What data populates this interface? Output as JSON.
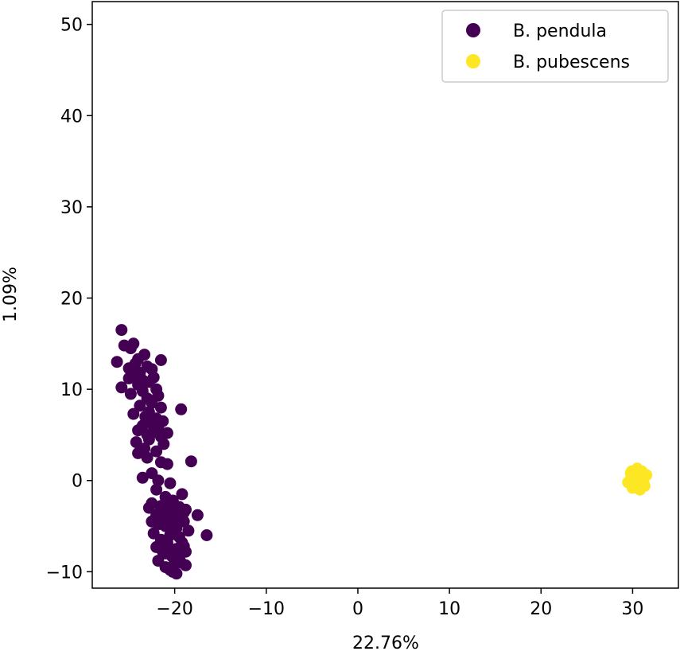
{
  "chart_data": {
    "type": "scatter",
    "title": "",
    "xlabel": "22.76%",
    "ylabel": "1.09%",
    "xlim": [
      -29,
      35
    ],
    "ylim": [
      -11.8,
      52.5
    ],
    "xticks": [
      -20,
      -10,
      0,
      10,
      20,
      30
    ],
    "yticks": [
      -10,
      0,
      10,
      20,
      30,
      40,
      50
    ],
    "xtick_labels": [
      "−20",
      "−10",
      "0",
      "10",
      "20",
      "30"
    ],
    "ytick_labels": [
      "−10",
      "0",
      "10",
      "20",
      "30",
      "40",
      "50"
    ],
    "grid": false,
    "legend_position": "top-right",
    "series": [
      {
        "name": "B. pendula",
        "color": "#440154",
        "points": [
          [
            -25.8,
            16.5
          ],
          [
            -24.5,
            15.0
          ],
          [
            -25.5,
            14.8
          ],
          [
            -24.8,
            14.5
          ],
          [
            -23.3,
            13.8
          ],
          [
            -24.0,
            13.3
          ],
          [
            -21.5,
            13.2
          ],
          [
            -26.3,
            13.0
          ],
          [
            -24.3,
            12.8
          ],
          [
            -23.0,
            12.5
          ],
          [
            -25.0,
            12.3
          ],
          [
            -22.5,
            12.2
          ],
          [
            -23.8,
            11.8
          ],
          [
            -24.5,
            11.5
          ],
          [
            -22.3,
            11.3
          ],
          [
            -23.5,
            11.0
          ],
          [
            -25.0,
            11.2
          ],
          [
            -22.8,
            10.8
          ],
          [
            -24.0,
            10.5
          ],
          [
            -25.8,
            10.2
          ],
          [
            -22.0,
            10.0
          ],
          [
            -23.5,
            9.8
          ],
          [
            -24.8,
            9.5
          ],
          [
            -21.8,
            9.3
          ],
          [
            -23.0,
            9.0
          ],
          [
            -22.5,
            8.5
          ],
          [
            -23.8,
            8.2
          ],
          [
            -21.5,
            8.0
          ],
          [
            -19.3,
            7.8
          ],
          [
            -22.8,
            7.5
          ],
          [
            -24.5,
            7.3
          ],
          [
            -23.2,
            7.0
          ],
          [
            -22.0,
            6.8
          ],
          [
            -21.3,
            6.5
          ],
          [
            -22.5,
            6.2
          ],
          [
            -23.5,
            6.0
          ],
          [
            -21.8,
            5.8
          ],
          [
            -24.0,
            5.5
          ],
          [
            -22.3,
            5.3
          ],
          [
            -20.8,
            5.2
          ],
          [
            -23.0,
            5.0
          ],
          [
            -21.5,
            4.8
          ],
          [
            -22.8,
            4.5
          ],
          [
            -24.2,
            4.2
          ],
          [
            -21.2,
            4.0
          ],
          [
            -23.3,
            3.5
          ],
          [
            -22.0,
            3.2
          ],
          [
            -24.0,
            3.0
          ],
          [
            -23.0,
            2.5
          ],
          [
            -21.5,
            2.0
          ],
          [
            -18.2,
            2.1
          ],
          [
            -20.8,
            1.8
          ],
          [
            -22.5,
            0.8
          ],
          [
            -23.5,
            0.3
          ],
          [
            -21.8,
            0.0
          ],
          [
            -20.5,
            -0.3
          ],
          [
            -19.2,
            -1.5
          ],
          [
            -22.0,
            -1.0
          ],
          [
            -21.0,
            -1.8
          ],
          [
            -20.2,
            -2.2
          ],
          [
            -22.5,
            -2.5
          ],
          [
            -21.5,
            -2.8
          ],
          [
            -19.5,
            -2.9
          ],
          [
            -18.8,
            -3.2
          ],
          [
            -20.8,
            -3.5
          ],
          [
            -22.0,
            -3.8
          ],
          [
            -17.5,
            -3.8
          ],
          [
            -21.2,
            -4.0
          ],
          [
            -20.0,
            -4.2
          ],
          [
            -19.0,
            -4.5
          ],
          [
            -22.5,
            -4.5
          ],
          [
            -21.0,
            -5.0
          ],
          [
            -19.8,
            -5.2
          ],
          [
            -18.5,
            -5.5
          ],
          [
            -22.3,
            -5.8
          ],
          [
            -20.5,
            -6.0
          ],
          [
            -16.5,
            -6.0
          ],
          [
            -21.5,
            -6.5
          ],
          [
            -19.2,
            -6.8
          ],
          [
            -20.8,
            -7.0
          ],
          [
            -22.0,
            -7.3
          ],
          [
            -19.8,
            -7.5
          ],
          [
            -18.8,
            -7.8
          ],
          [
            -21.0,
            -8.0
          ],
          [
            -20.3,
            -8.3
          ],
          [
            -19.5,
            -8.5
          ],
          [
            -21.8,
            -8.8
          ],
          [
            -20.0,
            -9.0
          ],
          [
            -18.8,
            -9.3
          ],
          [
            -21.0,
            -9.5
          ],
          [
            -20.5,
            -9.8
          ],
          [
            -19.8,
            -10.2
          ],
          [
            -20.2,
            -10.0
          ],
          [
            -21.5,
            -3.2
          ],
          [
            -20.5,
            -3.0
          ],
          [
            -19.0,
            -3.5
          ],
          [
            -21.8,
            -4.8
          ],
          [
            -20.2,
            -5.5
          ],
          [
            -19.5,
            -6.2
          ],
          [
            -20.8,
            -6.8
          ],
          [
            -19.0,
            -7.2
          ],
          [
            -21.3,
            -7.8
          ],
          [
            -20.5,
            -4.5
          ],
          [
            -19.8,
            -4.0
          ],
          [
            -22.8,
            -3.0
          ],
          [
            -21.0,
            -2.5
          ],
          [
            -20.0,
            -8.0
          ],
          [
            -19.3,
            -9.0
          ]
        ]
      },
      {
        "name": "B. pubescens",
        "color": "#fde725",
        "points": [
          [
            30.5,
            1.3
          ],
          [
            31.0,
            1.0
          ],
          [
            29.8,
            0.8
          ],
          [
            30.3,
            0.5
          ],
          [
            31.5,
            0.6
          ],
          [
            30.0,
            0.2
          ],
          [
            30.8,
            0.0
          ],
          [
            29.5,
            -0.2
          ],
          [
            31.2,
            -0.3
          ],
          [
            30.5,
            -0.5
          ],
          [
            30.0,
            -0.8
          ],
          [
            30.8,
            -1.0
          ],
          [
            31.0,
            0.3
          ],
          [
            30.2,
            -0.2
          ],
          [
            29.9,
            1.0
          ],
          [
            31.3,
            -0.6
          ]
        ]
      }
    ]
  }
}
